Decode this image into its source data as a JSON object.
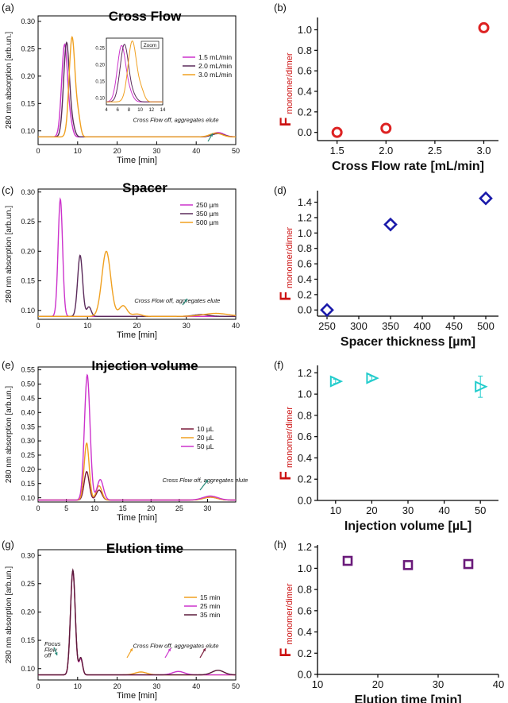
{
  "chart_data": [
    {
      "id": "a",
      "type": "line",
      "panel_label": "(a)",
      "title": "Cross Flow",
      "xlabel": "Time [min]",
      "ylabel": "280 nm absorption [arb.un.]",
      "xlim": [
        0,
        50
      ],
      "ylim": [
        0.075,
        0.31
      ],
      "xticks": [
        0,
        10,
        20,
        30,
        40,
        50
      ],
      "yticks": [
        0.1,
        0.15,
        0.2,
        0.25,
        0.3
      ],
      "baseline": 0.089,
      "legend_position": "right",
      "series": [
        {
          "name": "1.5 mL/min",
          "color": "#cc33cc",
          "peaks": [
            [
              6.7,
              0.168,
              0.75
            ],
            [
              8.2,
              0.02,
              0.6
            ],
            [
              45.5,
              0.008,
              1.5
            ]
          ]
        },
        {
          "name": "2.0 mL/min",
          "color": "#5a2a5a",
          "peaks": [
            [
              7.2,
              0.172,
              0.75
            ],
            [
              8.8,
              0.015,
              0.6
            ],
            [
              45.5,
              0.006,
              1.5
            ]
          ]
        },
        {
          "name": "3.0 mL/min",
          "color": "#f0a020",
          "peaks": [
            [
              8.6,
              0.182,
              0.75
            ],
            [
              10.2,
              0.03,
              0.55
            ],
            [
              45,
              0.007,
              1.5
            ]
          ]
        }
      ],
      "annotations": [
        {
          "text": "Cross Flow off, aggregates elute",
          "x": 24,
          "y": 0.116
        }
      ],
      "inset": {
        "label": "Zoom",
        "xlim": [
          4,
          14
        ],
        "ylim": [
          0.08,
          0.28
        ],
        "xticks": [
          4,
          6,
          8,
          10,
          12,
          14
        ],
        "yticks": [
          0.1,
          0.15,
          0.2,
          0.25
        ]
      }
    },
    {
      "id": "b",
      "type": "scatter",
      "panel_label": "(b)",
      "xlabel": "Cross Flow rate [mL/min]",
      "ylabel_main": "F",
      "ylabel_sub": "monomer/dimer",
      "xlim": [
        1.3,
        3.15
      ],
      "ylim": [
        -0.08,
        1.12
      ],
      "xticks": [
        1.5,
        2.0,
        2.5,
        3.0
      ],
      "yticks": [
        0.0,
        0.2,
        0.4,
        0.6,
        0.8,
        1.0
      ],
      "marker": "circle",
      "color": "#dd2222",
      "x": [
        1.5,
        2.0,
        3.0
      ],
      "y": [
        0.0,
        0.04,
        1.02
      ],
      "err": [
        0,
        0,
        0
      ]
    },
    {
      "id": "c",
      "type": "line",
      "panel_label": "(c)",
      "title": "Spacer",
      "xlabel": "Time [min]",
      "ylabel": "280 nm absorption [arb.un.]",
      "xlim": [
        0,
        40
      ],
      "ylim": [
        0.085,
        0.305
      ],
      "xticks": [
        0,
        10,
        20,
        30,
        40
      ],
      "yticks": [
        0.1,
        0.15,
        0.2,
        0.25,
        0.3
      ],
      "baseline": 0.09,
      "legend_position": "top-right",
      "series": [
        {
          "name": "250 µm",
          "color": "#cc33cc",
          "peaks": [
            [
              4.5,
              0.198,
              0.45
            ]
          ]
        },
        {
          "name": "350 µm",
          "color": "#5a2a5a",
          "peaks": [
            [
              8.5,
              0.103,
              0.5
            ],
            [
              10.3,
              0.016,
              0.45
            ],
            [
              33,
              0.003,
              1.5
            ]
          ]
        },
        {
          "name": "500 µm",
          "color": "#f0a020",
          "peaks": [
            [
              13.8,
              0.11,
              0.9
            ],
            [
              17.2,
              0.018,
              0.8
            ],
            [
              20,
              0.004,
              0.9
            ],
            [
              36,
              0.005,
              2.5
            ]
          ]
        }
      ],
      "annotations": [
        {
          "text": "Cross Flow off, aggregates elute",
          "x": 19.5,
          "y": 0.113
        }
      ]
    },
    {
      "id": "d",
      "type": "scatter",
      "panel_label": "(d)",
      "xlabel": "Spacer thickness [µm]",
      "ylabel_main": "F",
      "ylabel_sub": "monomer/dimer",
      "xlim": [
        235,
        520
      ],
      "ylim": [
        -0.08,
        1.55
      ],
      "xticks": [
        250,
        300,
        350,
        400,
        450,
        500
      ],
      "yticks": [
        0.0,
        0.2,
        0.4,
        0.6,
        0.8,
        1.0,
        1.2,
        1.4
      ],
      "marker": "diamond",
      "color": "#1a1aaa",
      "x": [
        250,
        350,
        500
      ],
      "y": [
        0.0,
        1.11,
        1.45
      ],
      "err": [
        0,
        0,
        0
      ]
    },
    {
      "id": "e",
      "type": "line",
      "panel_label": "(e)",
      "title": "Injection volume",
      "xlabel": "Time [min]",
      "ylabel": "280 nm absorption [arb.un.]",
      "xlim": [
        0,
        35
      ],
      "ylim": [
        0.085,
        0.56
      ],
      "xticks": [
        0,
        5,
        10,
        15,
        20,
        25,
        30
      ],
      "yticks": [
        0.1,
        0.15,
        0.2,
        0.25,
        0.3,
        0.35,
        0.4,
        0.45,
        0.5,
        0.55
      ],
      "baseline": 0.092,
      "legend_position": "right",
      "series": [
        {
          "name": "10 µL",
          "color": "#7a1a3a",
          "peaks": [
            [
              8.6,
              0.1,
              0.45
            ],
            [
              10.8,
              0.035,
              0.5
            ],
            [
              30.5,
              0.01,
              1.2
            ]
          ]
        },
        {
          "name": "20 µL",
          "color": "#f0a020",
          "peaks": [
            [
              8.6,
              0.2,
              0.45
            ],
            [
              10.8,
              0.05,
              0.5
            ],
            [
              30.5,
              0.01,
              1.2
            ]
          ]
        },
        {
          "name": "50 µL",
          "color": "#cc33cc",
          "peaks": [
            [
              8.7,
              0.44,
              0.5
            ],
            [
              11,
              0.072,
              0.55
            ],
            [
              30.5,
              0.014,
              1.3
            ]
          ]
        }
      ],
      "annotations": [
        {
          "text": "Cross Flow off, aggregates elute",
          "x": 22,
          "y": 0.155
        }
      ]
    },
    {
      "id": "f",
      "type": "scatter",
      "panel_label": "(f)",
      "xlabel": "Injection volume [µL]",
      "ylabel_main": "F",
      "ylabel_sub": "monomer/dimer",
      "xlim": [
        5,
        55
      ],
      "ylim": [
        0.0,
        1.27
      ],
      "xticks": [
        10,
        20,
        30,
        40,
        50
      ],
      "yticks": [
        0.0,
        0.2,
        0.4,
        0.6,
        0.8,
        1.0,
        1.2
      ],
      "marker": "triangle-right",
      "color": "#22cccc",
      "x": [
        10,
        20,
        50
      ],
      "y": [
        1.12,
        1.15,
        1.07
      ],
      "err": [
        0.02,
        0.02,
        0.1
      ]
    },
    {
      "id": "g",
      "type": "line",
      "panel_label": "(g)",
      "title": "Elution time",
      "xlabel": "Time [min]",
      "ylabel": "280 nm absorption [arb.un.]",
      "xlim": [
        0,
        50
      ],
      "ylim": [
        0.08,
        0.31
      ],
      "xticks": [
        0,
        10,
        20,
        30,
        40,
        50
      ],
      "yticks": [
        0.1,
        0.15,
        0.2,
        0.25,
        0.3
      ],
      "baseline": 0.089,
      "legend_position": "right",
      "series": [
        {
          "name": "15 min",
          "color": "#f0a020",
          "peaks": [
            [
              8.8,
              0.183,
              0.6
            ],
            [
              10.8,
              0.028,
              0.45
            ],
            [
              26,
              0.005,
              1.5
            ]
          ]
        },
        {
          "name": "25 min",
          "color": "#cc33cc",
          "peaks": [
            [
              8.8,
              0.183,
              0.6
            ],
            [
              10.8,
              0.028,
              0.45
            ],
            [
              35.5,
              0.006,
              1.5
            ]
          ]
        },
        {
          "name": "35 min",
          "color": "#5a1a3a",
          "peaks": [
            [
              8.8,
              0.185,
              0.6
            ],
            [
              10.8,
              0.03,
              0.45
            ],
            [
              45.5,
              0.008,
              1.5
            ]
          ]
        }
      ],
      "annotations": [
        {
          "text": "Cross Flow off, aggregates elute",
          "x": 24,
          "y": 0.137
        },
        {
          "text": "Focus",
          "x": 1.6,
          "y": 0.14
        },
        {
          "text": "Flow",
          "x": 1.6,
          "y": 0.13
        },
        {
          "text": "off",
          "x": 1.6,
          "y": 0.12
        }
      ]
    },
    {
      "id": "h",
      "type": "scatter",
      "panel_label": "(h)",
      "xlabel": "Elution time [min]",
      "ylabel_main": "F",
      "ylabel_sub": "monomer/dimer",
      "xlim": [
        10,
        40
      ],
      "ylim": [
        0.0,
        1.22
      ],
      "xticks": [
        10,
        20,
        30,
        40
      ],
      "yticks": [
        0.0,
        0.2,
        0.4,
        0.6,
        0.8,
        1.0,
        1.2
      ],
      "marker": "square",
      "color": "#6a1a7a",
      "x": [
        15,
        25,
        35
      ],
      "y": [
        1.07,
        1.03,
        1.04
      ],
      "err": [
        0,
        0,
        0
      ]
    }
  ]
}
